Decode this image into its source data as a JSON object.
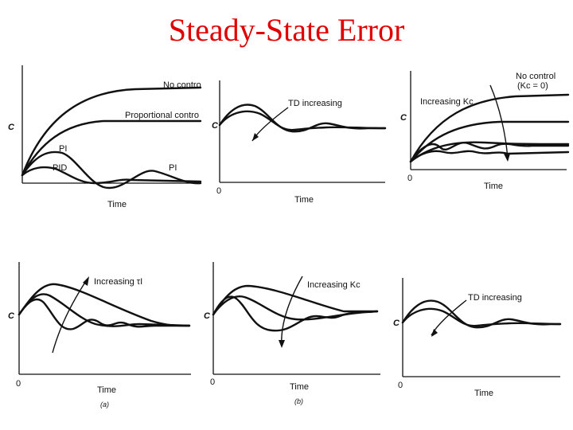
{
  "title": "Steady-State Error",
  "panels": {
    "pid_compare": {
      "ylabel": "C",
      "xlabel": "Time",
      "no_control": "No contro",
      "proportional": "Proportional contro",
      "pi_upper": "PI",
      "pid": "PID",
      "pi_right": "PI"
    },
    "derivative_top": {
      "ylabel": "C",
      "xlabel": "Time",
      "origin": "0",
      "annotation": "TD increasing"
    },
    "kc_top": {
      "ylabel": "C",
      "xlabel": "Time",
      "origin": "0",
      "no_control_line1": "No control",
      "no_control_line2": "(Kc = 0)",
      "annotation": "Increasing Kc"
    },
    "integral_bottom": {
      "ylabel": "C",
      "xlabel": "Time",
      "origin": "0",
      "annotation": "Increasing τI",
      "caption": "(a)"
    },
    "kc_bottom": {
      "ylabel": "C",
      "xlabel": "Time",
      "origin": "0",
      "annotation": "Increasing Kc",
      "caption": "(b)"
    },
    "derivative_bottom": {
      "ylabel": "C",
      "xlabel": "Time",
      "origin": "0",
      "annotation": "TD increasing"
    }
  }
}
